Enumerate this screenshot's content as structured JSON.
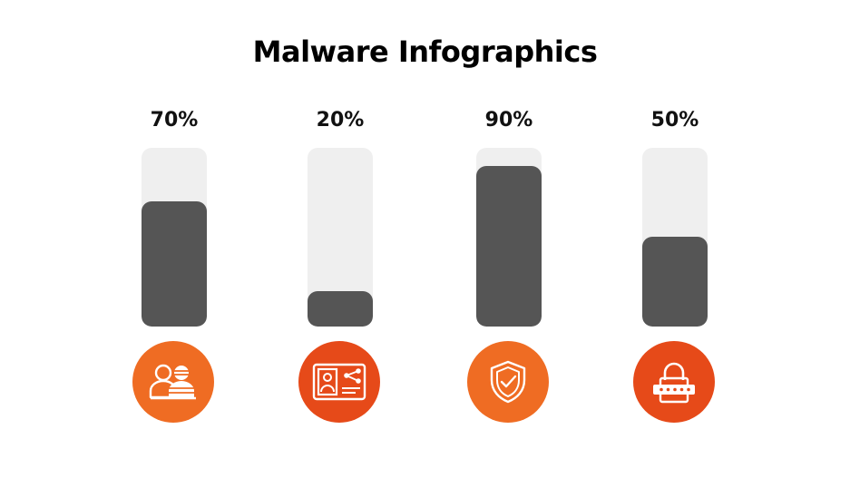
{
  "title": "Malware Infographics",
  "colors": {
    "track": "#efefef",
    "fill": "#555555",
    "icon_circle_a": "#ef6c23",
    "icon_circle_b": "#e64a19",
    "icon_stroke": "#ffffff"
  },
  "chart_data": {
    "type": "bar",
    "title": "Malware Infographics",
    "categories": [
      "",
      "",
      "",
      ""
    ],
    "values": [
      70,
      20,
      90,
      50
    ],
    "value_labels": [
      "70%",
      "20%",
      "90%",
      "50%"
    ],
    "ylim": [
      0,
      100
    ],
    "grid": false,
    "icons": [
      "users-icon",
      "id-card-share-icon",
      "shield-check-icon",
      "padlock-password-icon"
    ]
  }
}
